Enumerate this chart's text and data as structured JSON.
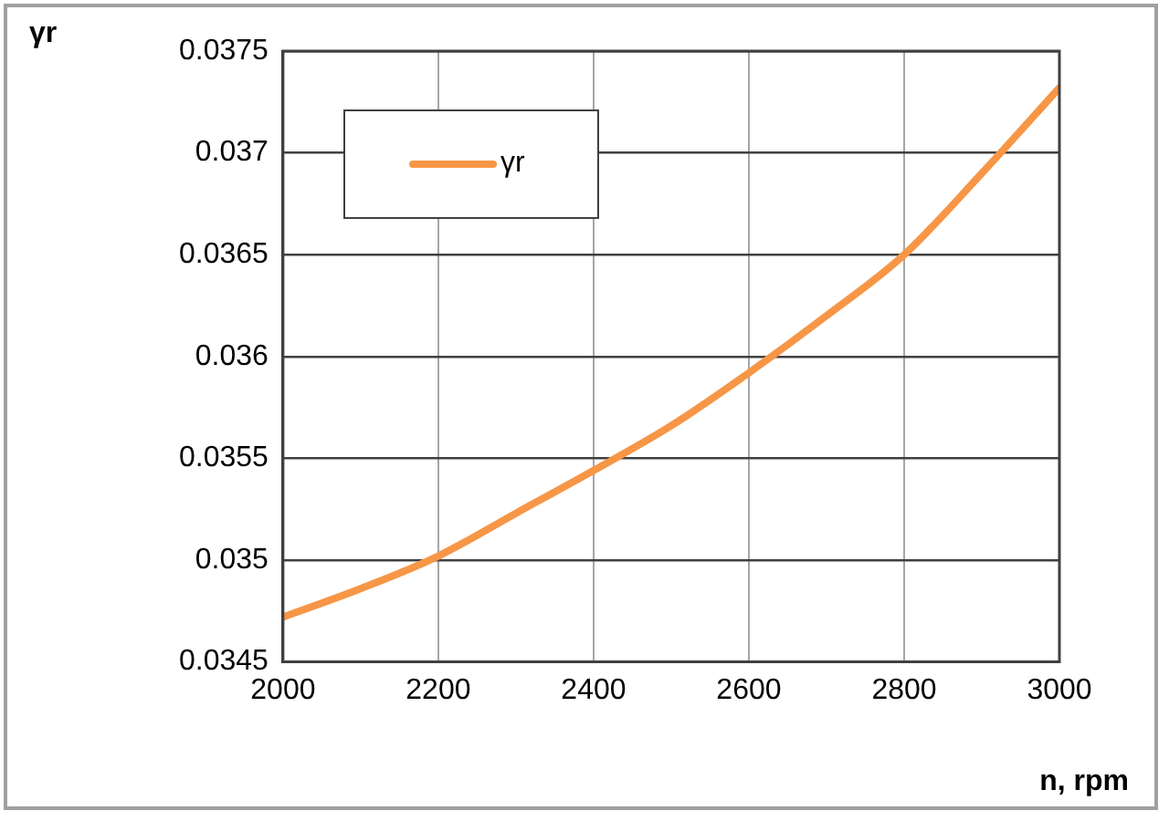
{
  "chart_data": {
    "type": "line",
    "xlabel": "n, rpm",
    "ylabel": "γr",
    "x": [
      2000,
      2100,
      2200,
      2300,
      2400,
      2500,
      2600,
      2700,
      2800,
      2900,
      3000
    ],
    "series": [
      {
        "name": "γr",
        "color": "#f79646",
        "values": [
          0.03472,
          0.03486,
          0.03502,
          0.03523,
          0.03544,
          0.03566,
          0.03592,
          0.0362,
          0.0365,
          0.0369,
          0.03732
        ]
      }
    ],
    "xlim": [
      2000,
      3000
    ],
    "xticks": [
      2000,
      2200,
      2400,
      2600,
      2800,
      3000
    ],
    "ylim": [
      0.0345,
      0.0375
    ],
    "yticks": [
      0.0345,
      0.035,
      0.0355,
      0.036,
      0.0365,
      0.037,
      0.0375
    ],
    "grid": true,
    "legend": "top left",
    "marker": "none",
    "line_style": "solid"
  }
}
